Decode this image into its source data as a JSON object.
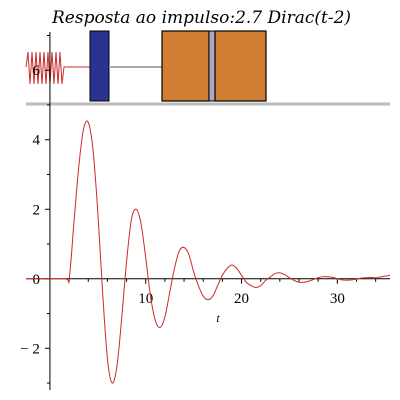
{
  "chart_data": {
    "type": "line",
    "title": "Resposta ao   impulso:2.7 Dirac(t-2)",
    "xlabel": "t",
    "ylabel": "",
    "xlim": [
      -2.5,
      35.5
    ],
    "ylim": [
      -3.2,
      7.1
    ],
    "x_ticks": [
      {
        "value": 10,
        "label": "10"
      },
      {
        "value": 20,
        "label": "20"
      },
      {
        "value": 30,
        "label": "30"
      }
    ],
    "y_ticks": [
      {
        "value": 6,
        "label": "6"
      },
      {
        "value": 4,
        "label": "4"
      },
      {
        "value": 2,
        "label": "2"
      },
      {
        "value": 0,
        "label": "0"
      },
      {
        "value": -2,
        "label": "− 2"
      }
    ],
    "series": [
      {
        "color": "#cc2a2a",
        "x": [
          -2.5,
          1.5,
          2.0,
          2.5,
          3.0,
          3.5,
          4.0,
          4.5,
          5.0,
          5.5,
          6.0,
          6.5,
          7.0,
          7.5,
          8.0,
          8.5,
          9.0,
          9.5,
          10.0,
          10.5,
          11.0,
          11.5,
          12.0,
          12.5,
          13.0,
          13.5,
          14.0,
          14.5,
          15.0,
          15.5,
          16.0,
          16.5,
          17.0,
          17.5,
          18.0,
          18.5,
          19.0,
          19.5,
          20.0,
          20.5,
          21.0,
          21.5,
          22.0,
          22.5,
          23.0,
          23.5,
          24.0,
          24.5,
          25.0,
          25.5,
          26.0,
          26.5,
          27.0,
          27.5,
          28.0,
          28.5,
          29.0,
          29.5,
          30.0,
          30.5,
          31.0,
          31.5,
          32.0,
          32.5,
          33.0,
          33.5,
          34.0,
          34.5,
          35.0,
          35.5
        ],
        "y": [
          0,
          0,
          0,
          1.6,
          3.2,
          4.3,
          4.5,
          3.7,
          1.9,
          -0.4,
          -2.3,
          -3.0,
          -2.5,
          -1.1,
          0.5,
          1.7,
          2.0,
          1.6,
          0.6,
          -0.5,
          -1.2,
          -1.4,
          -1.1,
          -0.4,
          0.3,
          0.8,
          0.9,
          0.7,
          0.2,
          -0.2,
          -0.5,
          -0.6,
          -0.5,
          -0.2,
          0.1,
          0.3,
          0.4,
          0.3,
          0.1,
          -0.1,
          -0.2,
          -0.25,
          -0.2,
          -0.05,
          0.05,
          0.15,
          0.17,
          0.12,
          0.03,
          -0.05,
          -0.1,
          -0.1,
          -0.07,
          -0.02,
          0.03,
          0.06,
          0.06,
          0.04,
          0.0,
          -0.03,
          -0.04,
          -0.03,
          -0.01,
          0.02,
          0.03,
          0.04,
          0.03,
          0.05,
          0.08,
          0.1
        ]
      }
    ],
    "grid": false,
    "colors": {
      "curve": "#cc2a2a",
      "mass": "#2a3390",
      "damper": "#d07e34",
      "floor": "#bbbbbb",
      "rod": "#aaaaaa"
    }
  }
}
